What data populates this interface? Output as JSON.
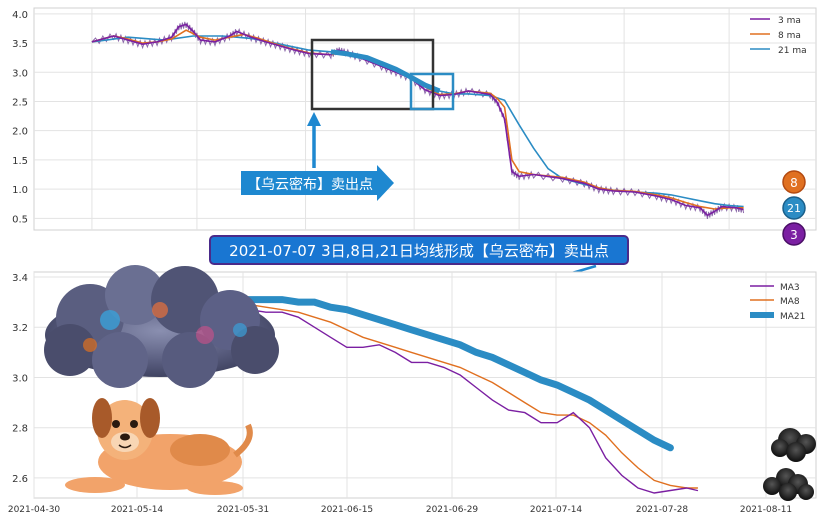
{
  "chart_data": [
    {
      "type": "line",
      "title": "",
      "xlabel": "",
      "ylabel": "",
      "ylim": [
        0.3,
        4.1
      ],
      "yticks": [
        "0.5",
        "1.0",
        "1.5",
        "2.0",
        "2.5",
        "3.0",
        "3.5",
        "4.0"
      ],
      "legend": {
        "placement": "top-right",
        "entries": [
          "3 ma",
          "8 ma",
          "21 ma"
        ]
      },
      "series": [
        {
          "name": "3 ma",
          "color": "#7b1fa2",
          "points": [
            [
              0,
              3.52
            ],
            [
              3,
              3.62
            ],
            [
              5,
              3.55
            ],
            [
              7,
              3.48
            ],
            [
              9,
              3.52
            ],
            [
              11,
              3.6
            ],
            [
              12,
              3.78
            ],
            [
              13,
              3.82
            ],
            [
              14,
              3.7
            ],
            [
              15,
              3.55
            ],
            [
              17,
              3.52
            ],
            [
              19,
              3.62
            ],
            [
              20,
              3.7
            ],
            [
              22,
              3.6
            ],
            [
              24,
              3.52
            ],
            [
              26,
              3.45
            ],
            [
              28,
              3.38
            ],
            [
              30,
              3.32
            ],
            [
              33,
              3.3
            ],
            [
              34,
              3.38
            ],
            [
              35,
              3.35
            ],
            [
              37,
              3.25
            ],
            [
              40,
              3.1
            ],
            [
              42,
              3.0
            ],
            [
              44,
              2.9
            ],
            [
              46,
              2.7
            ],
            [
              48,
              2.6
            ],
            [
              50,
              2.62
            ],
            [
              52,
              2.68
            ],
            [
              55,
              2.62
            ],
            [
              56,
              2.48
            ],
            [
              57,
              2.2
            ],
            [
              58,
              1.3
            ],
            [
              59,
              1.22
            ],
            [
              61,
              1.25
            ],
            [
              65,
              1.18
            ],
            [
              68,
              1.1
            ],
            [
              70,
              1.0
            ],
            [
              72,
              0.97
            ],
            [
              75,
              0.95
            ],
            [
              78,
              0.88
            ],
            [
              80,
              0.82
            ],
            [
              82,
              0.72
            ],
            [
              84,
              0.68
            ],
            [
              85,
              0.55
            ],
            [
              86,
              0.62
            ],
            [
              87,
              0.7
            ],
            [
              89,
              0.68
            ],
            [
              90,
              0.65
            ]
          ]
        },
        {
          "name": "8 ma",
          "color": "#e07020",
          "points": [
            [
              0,
              3.52
            ],
            [
              3,
              3.62
            ],
            [
              5,
              3.57
            ],
            [
              7,
              3.5
            ],
            [
              9,
              3.52
            ],
            [
              11,
              3.57
            ],
            [
              13,
              3.72
            ],
            [
              15,
              3.6
            ],
            [
              17,
              3.55
            ],
            [
              19,
              3.6
            ],
            [
              21,
              3.65
            ],
            [
              23,
              3.58
            ],
            [
              25,
              3.5
            ],
            [
              27,
              3.42
            ],
            [
              30,
              3.33
            ],
            [
              33,
              3.3
            ],
            [
              35,
              3.35
            ],
            [
              37,
              3.28
            ],
            [
              40,
              3.12
            ],
            [
              42,
              3.02
            ],
            [
              44,
              2.92
            ],
            [
              46,
              2.75
            ],
            [
              48,
              2.62
            ],
            [
              50,
              2.63
            ],
            [
              52,
              2.68
            ],
            [
              55,
              2.64
            ],
            [
              56,
              2.55
            ],
            [
              57,
              2.4
            ],
            [
              58,
              1.5
            ],
            [
              59,
              1.3
            ],
            [
              61,
              1.25
            ],
            [
              65,
              1.2
            ],
            [
              68,
              1.12
            ],
            [
              70,
              1.02
            ],
            [
              72,
              0.98
            ],
            [
              75,
              0.96
            ],
            [
              78,
              0.9
            ],
            [
              80,
              0.85
            ],
            [
              82,
              0.77
            ],
            [
              84,
              0.7
            ],
            [
              86,
              0.66
            ],
            [
              88,
              0.68
            ],
            [
              90,
              0.68
            ]
          ]
        },
        {
          "name": "21 ma",
          "color": "#2b8cc4",
          "points": [
            [
              0,
              3.52
            ],
            [
              5,
              3.6
            ],
            [
              10,
              3.55
            ],
            [
              14,
              3.62
            ],
            [
              18,
              3.62
            ],
            [
              22,
              3.58
            ],
            [
              26,
              3.48
            ],
            [
              30,
              3.38
            ],
            [
              33,
              3.35
            ],
            [
              35,
              3.32
            ],
            [
              38,
              3.25
            ],
            [
              40,
              3.15
            ],
            [
              42,
              3.05
            ],
            [
              44,
              2.92
            ],
            [
              46,
              2.78
            ],
            [
              48,
              2.68
            ],
            [
              50,
              2.63
            ],
            [
              52,
              2.63
            ],
            [
              55,
              2.6
            ],
            [
              57,
              2.52
            ],
            [
              59,
              2.1
            ],
            [
              61,
              1.7
            ],
            [
              63,
              1.35
            ],
            [
              65,
              1.18
            ],
            [
              68,
              1.08
            ],
            [
              70,
              1.02
            ],
            [
              72,
              0.98
            ],
            [
              75,
              0.95
            ],
            [
              78,
              0.93
            ],
            [
              80,
              0.9
            ],
            [
              82,
              0.85
            ],
            [
              84,
              0.8
            ],
            [
              86,
              0.75
            ],
            [
              88,
              0.72
            ],
            [
              90,
              0.7
            ]
          ]
        }
      ],
      "badges": [
        {
          "label": "8",
          "color": "#e07020"
        },
        {
          "label": "21",
          "color": "#2b8cc4"
        },
        {
          "label": "3",
          "color": "#7b1fa2"
        }
      ]
    },
    {
      "type": "line",
      "title": "",
      "xlabel": "",
      "ylabel": "",
      "ylim": [
        2.52,
        3.42
      ],
      "yticks": [
        "2.6",
        "2.8",
        "3.0",
        "3.2",
        "3.4"
      ],
      "xticks": [
        "2021-04-30",
        "2021-05-14",
        "2021-05-31",
        "2021-06-15",
        "2021-06-29",
        "2021-07-14",
        "2021-07-28",
        "2021-08-11"
      ],
      "legend": {
        "placement": "top-right",
        "entries": [
          "MA3",
          "MA8",
          "MA21"
        ]
      },
      "series": [
        {
          "name": "MA3",
          "color": "#7b1fa2",
          "points": [
            [
              0,
              3.37
            ],
            [
              3,
              3.33
            ],
            [
              6,
              3.29
            ],
            [
              9,
              3.28
            ],
            [
              12,
              3.27
            ],
            [
              15,
              3.26
            ],
            [
              18,
              3.26
            ],
            [
              21,
              3.24
            ],
            [
              24,
              3.2
            ],
            [
              27,
              3.16
            ],
            [
              30,
              3.12
            ],
            [
              33,
              3.12
            ],
            [
              36,
              3.13
            ],
            [
              39,
              3.1
            ],
            [
              42,
              3.06
            ],
            [
              45,
              3.06
            ],
            [
              48,
              3.04
            ],
            [
              51,
              3.01
            ],
            [
              54,
              2.96
            ],
            [
              57,
              2.91
            ],
            [
              60,
              2.87
            ],
            [
              63,
              2.86
            ],
            [
              66,
              2.82
            ],
            [
              69,
              2.82
            ],
            [
              72,
              2.86
            ],
            [
              75,
              2.8
            ],
            [
              78,
              2.68
            ],
            [
              81,
              2.61
            ],
            [
              84,
              2.56
            ],
            [
              87,
              2.54
            ],
            [
              90,
              2.55
            ],
            [
              93,
              2.56
            ],
            [
              95,
              2.55
            ]
          ]
        },
        {
          "name": "MA8",
          "color": "#e07020",
          "points": [
            [
              0,
              3.37
            ],
            [
              3,
              3.36
            ],
            [
              6,
              3.33
            ],
            [
              9,
              3.3
            ],
            [
              12,
              3.29
            ],
            [
              15,
              3.28
            ],
            [
              18,
              3.27
            ],
            [
              21,
              3.26
            ],
            [
              24,
              3.24
            ],
            [
              27,
              3.22
            ],
            [
              30,
              3.19
            ],
            [
              33,
              3.16
            ],
            [
              36,
              3.14
            ],
            [
              39,
              3.12
            ],
            [
              42,
              3.1
            ],
            [
              45,
              3.08
            ],
            [
              48,
              3.06
            ],
            [
              51,
              3.04
            ],
            [
              54,
              3.01
            ],
            [
              57,
              2.98
            ],
            [
              60,
              2.94
            ],
            [
              63,
              2.9
            ],
            [
              66,
              2.86
            ],
            [
              69,
              2.85
            ],
            [
              72,
              2.85
            ],
            [
              75,
              2.82
            ],
            [
              78,
              2.77
            ],
            [
              81,
              2.7
            ],
            [
              84,
              2.64
            ],
            [
              87,
              2.59
            ],
            [
              90,
              2.57
            ],
            [
              93,
              2.56
            ],
            [
              95,
              2.56
            ]
          ]
        },
        {
          "name": "MA21",
          "color": "#2b8cc4",
          "points": [
            [
              0,
              3.31
            ],
            [
              3,
              3.31
            ],
            [
              6,
              3.31
            ],
            [
              9,
              3.31
            ],
            [
              12,
              3.31
            ],
            [
              15,
              3.31
            ],
            [
              18,
              3.31
            ],
            [
              21,
              3.3
            ],
            [
              24,
              3.3
            ],
            [
              27,
              3.28
            ],
            [
              30,
              3.27
            ],
            [
              33,
              3.25
            ],
            [
              36,
              3.23
            ],
            [
              39,
              3.21
            ],
            [
              42,
              3.19
            ],
            [
              45,
              3.17
            ],
            [
              48,
              3.15
            ],
            [
              51,
              3.13
            ],
            [
              54,
              3.1
            ],
            [
              57,
              3.08
            ],
            [
              60,
              3.05
            ],
            [
              63,
              3.02
            ],
            [
              66,
              2.99
            ],
            [
              69,
              2.97
            ],
            [
              72,
              2.94
            ],
            [
              75,
              2.91
            ],
            [
              78,
              2.87
            ],
            [
              81,
              2.83
            ],
            [
              84,
              2.79
            ],
            [
              87,
              2.75
            ],
            [
              90,
              2.72
            ]
          ]
        }
      ]
    }
  ],
  "annotations": {
    "upper_callout": "【乌云密布】卖出点",
    "main_caption": "2021-07-07 3日,8日,21日均线形成【乌云密布】卖出点"
  },
  "colors": {
    "accent": "#2b8cc4",
    "callout_bg": "#1e88d0",
    "caption_bg": "#1976d2",
    "caption_border": "#4a2a8a",
    "grid": "#e3e3e3",
    "axis": "#cccccc",
    "box_dark": "#333333"
  }
}
